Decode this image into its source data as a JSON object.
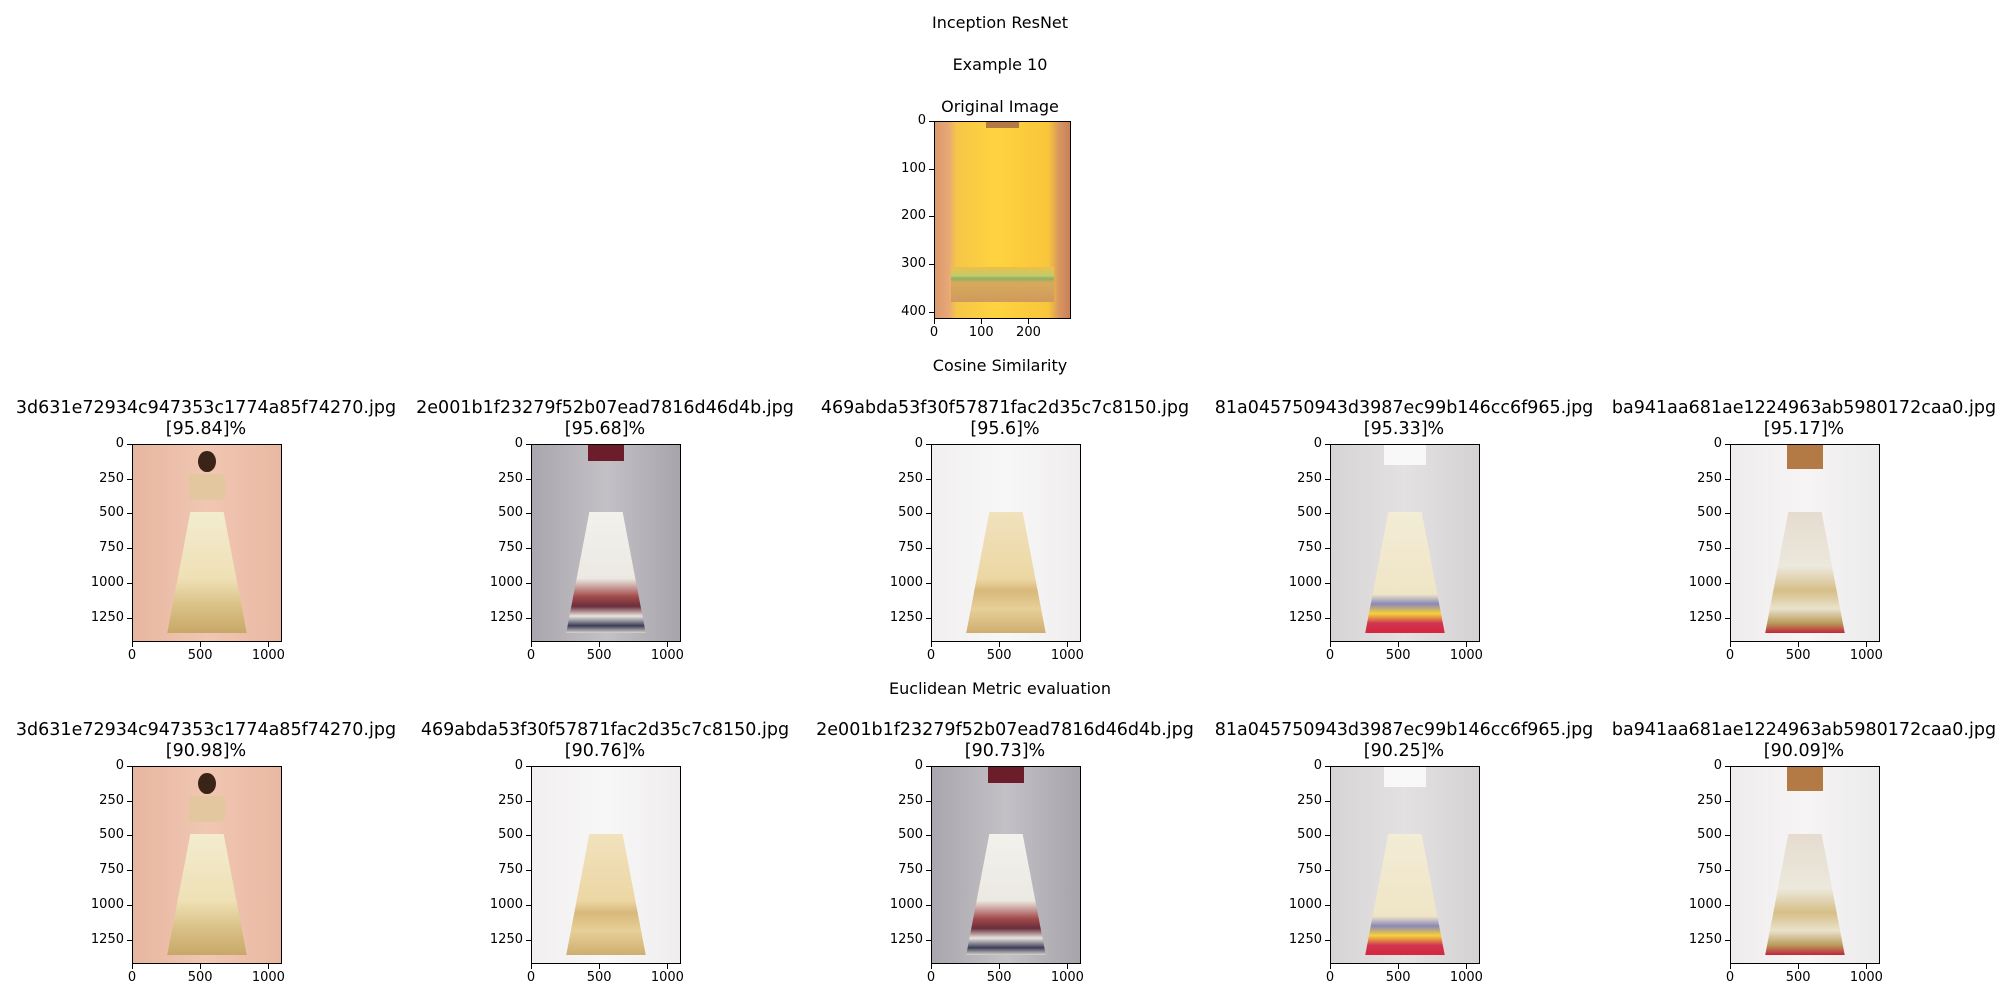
{
  "figure": {
    "title": "Inception ResNet",
    "example": "Example 10",
    "original_title": "Original Image",
    "cosine_heading": "Cosine Similarity",
    "euclidean_heading": "Euclidean Metric evaluation"
  },
  "original_axes": {
    "yticks": [
      "0",
      "100",
      "200",
      "300",
      "400"
    ],
    "xticks": [
      "0",
      "100",
      "200"
    ]
  },
  "result_axes": {
    "yticks": [
      "0",
      "250",
      "500",
      "750",
      "1000",
      "1250"
    ],
    "xticks": [
      "0",
      "500",
      "1000"
    ]
  },
  "cosine_results": [
    {
      "filename": "3d631e72934c947353c1774a85f74270.jpg",
      "score": "[95.84]%"
    },
    {
      "filename": "2e001b1f23279f52b07ead7816d46d4b.jpg",
      "score": "[95.68]%"
    },
    {
      "filename": "469abda53f30f57871fac2d35c7c8150.jpg",
      "score": "[95.6]%"
    },
    {
      "filename": "81a045750943d3987ec99b146cc6f965.jpg",
      "score": "[95.33]%"
    },
    {
      "filename": "ba941aa681ae1224963ab5980172caa0.jpg",
      "score": "[95.17]%"
    }
  ],
  "euclidean_results": [
    {
      "filename": "3d631e72934c947353c1774a85f74270.jpg",
      "score": "[90.98]%"
    },
    {
      "filename": "469abda53f30f57871fac2d35c7c8150.jpg",
      "score": "[90.76]%"
    },
    {
      "filename": "2e001b1f23279f52b07ead7816d46d4b.jpg",
      "score": "[90.73]%"
    },
    {
      "filename": "81a045750943d3987ec99b146cc6f965.jpg",
      "score": "[90.25]%"
    },
    {
      "filename": "ba941aa681ae1224963ab5980172caa0.jpg",
      "score": "[90.09]%"
    }
  ]
}
